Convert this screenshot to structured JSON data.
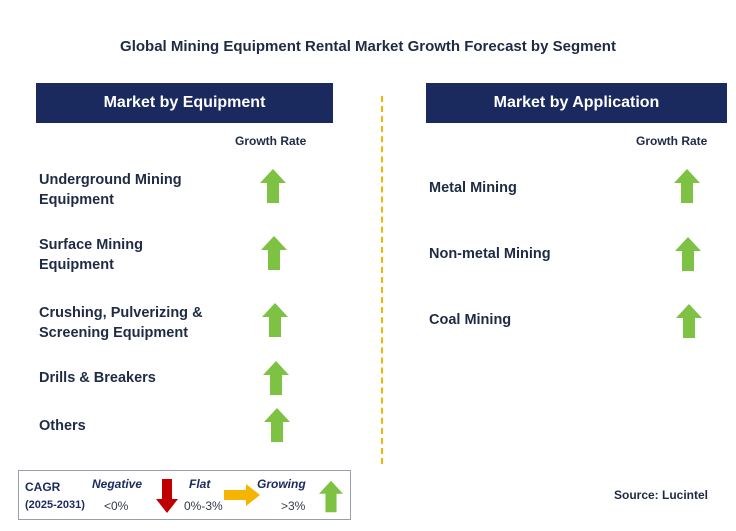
{
  "title": "Global Mining Equipment Rental Market Growth Forecast by Segment",
  "left_panel": {
    "header": "Market by Equipment",
    "growth_label": "Growth Rate",
    "items": [
      {
        "line1": "Underground Mining",
        "line2": "Equipment",
        "trend": "growing"
      },
      {
        "line1": "Surface Mining",
        "line2": "Equipment",
        "trend": "growing"
      },
      {
        "line1": "Crushing, Pulverizing &",
        "line2": "Screening Equipment",
        "trend": "growing"
      },
      {
        "line1": "Drills & Breakers",
        "line2": "",
        "trend": "growing"
      },
      {
        "line1": "Others",
        "line2": "",
        "trend": "growing"
      }
    ]
  },
  "right_panel": {
    "header": "Market by Application",
    "growth_label": "Growth Rate",
    "items": [
      {
        "line1": "Metal Mining",
        "trend": "growing"
      },
      {
        "line1": "Non-metal Mining",
        "trend": "growing"
      },
      {
        "line1": "Coal Mining",
        "trend": "growing"
      }
    ]
  },
  "legend": {
    "cagr_label": "CAGR",
    "period": "(2025-2031)",
    "negative_label": "Negative",
    "negative_value": "<0%",
    "flat_label": "Flat",
    "flat_value": "0%-3%",
    "growing_label": "Growing",
    "growing_value": ">3%"
  },
  "source": "Source: Lucintel",
  "colors": {
    "header_bg": "#1b2a5e",
    "growing_arrow": "#7dc243",
    "negative_arrow": "#c00000",
    "flat_arrow": "#f5b400",
    "divider": "#f5b400"
  }
}
